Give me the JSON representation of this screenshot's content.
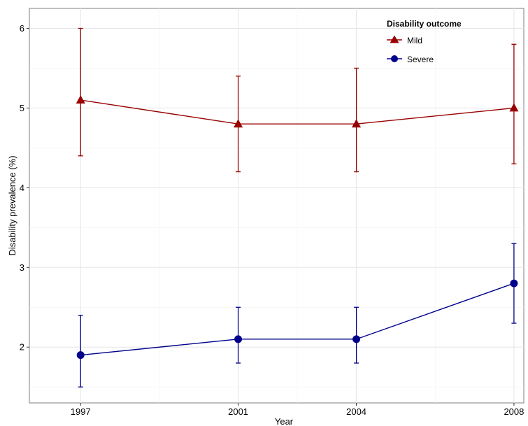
{
  "chart_data": {
    "type": "line",
    "x": [
      1997,
      2001,
      2004,
      2008
    ],
    "xlabel": "Year",
    "ylabel": "Disability prevalence (%)",
    "xlim": [
      1995.7,
      2008.25
    ],
    "ylim": [
      1.3,
      6.25
    ],
    "xticks": [
      "1997",
      "2001",
      "2004",
      "2008"
    ],
    "yticks": [
      "2",
      "3",
      "4",
      "5",
      "6"
    ],
    "grid": true,
    "legend_position": "top-right",
    "legend_title": "Disability outcome",
    "series": [
      {
        "name": "Mild",
        "color": "#990000",
        "marker": "triangle",
        "values": [
          5.1,
          4.8,
          4.8,
          5.0
        ],
        "lower": [
          4.4,
          4.2,
          4.2,
          4.3
        ],
        "upper": [
          6.0,
          5.4,
          5.5,
          5.8
        ]
      },
      {
        "name": "Severe",
        "color": "#00008B",
        "marker": "circle",
        "values": [
          1.9,
          2.1,
          2.1,
          2.8
        ],
        "lower": [
          1.5,
          1.8,
          1.8,
          2.3
        ],
        "upper": [
          2.4,
          2.5,
          2.5,
          3.3
        ]
      }
    ]
  }
}
